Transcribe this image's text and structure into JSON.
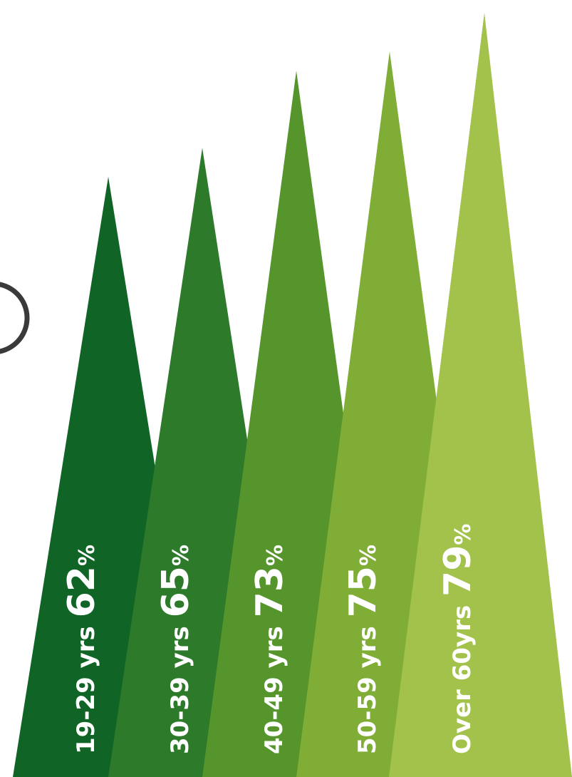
{
  "chart_data": {
    "type": "bar",
    "style": "triangle-peaks",
    "categories": [
      "19-29 yrs",
      "30-39 yrs",
      "40-49 yrs",
      "50-59 yrs",
      "Over 60yrs"
    ],
    "values": [
      62,
      65,
      73,
      75,
      79
    ],
    "value_suffix": "%",
    "colors": [
      "#0f6426",
      "#2c7a2a",
      "#56952c",
      "#80ad36",
      "#a2c24c"
    ],
    "orientation": "vertical",
    "labels_rotated": true,
    "legend": "none",
    "grid": false
  }
}
